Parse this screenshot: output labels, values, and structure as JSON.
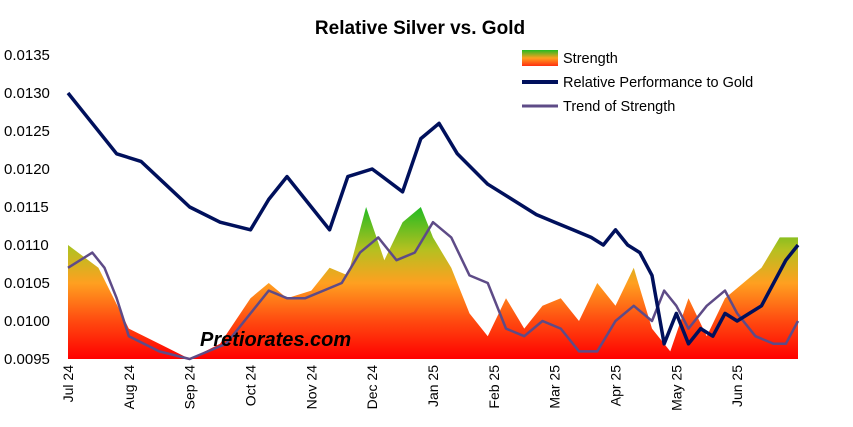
{
  "chart_data": {
    "type": "line",
    "title": "Relative Silver vs. Gold",
    "watermark": "Pretiorates.com",
    "ylim": [
      0.0095,
      0.0135
    ],
    "y_ticks": [
      "0.0135",
      "0.0130",
      "0.0125",
      "0.0120",
      "0.0115",
      "0.0110",
      "0.0105",
      "0.0100",
      "0.0095"
    ],
    "x_ticks": [
      "Jul 24",
      "Aug 24",
      "Sep 24",
      "Oct 24",
      "Nov 24",
      "Dec 24",
      "Jan 25",
      "Feb 25",
      "Mar 25",
      "Apr 25",
      "May 25",
      "Jun 25"
    ],
    "grid": false,
    "legend_position": "top-right",
    "legend": [
      {
        "label": "Strength",
        "kind": "gradient-area"
      },
      {
        "label": "Relative Performance to Gold",
        "kind": "line",
        "color": "#00105c"
      },
      {
        "label": "Trend of Strength",
        "kind": "line",
        "color": "#5e4b87"
      }
    ],
    "colors": {
      "performance": "#00105c",
      "trend": "#5e4b87",
      "strength_low": "#ff0000",
      "strength_mid": "#ffa020",
      "strength_high": "#22bb22"
    },
    "series": [
      {
        "name": "Relative Performance to Gold",
        "x": [
          0,
          0.3,
          0.8,
          1.2,
          1.6,
          2.0,
          2.5,
          3.0,
          3.3,
          3.6,
          4.1,
          4.3,
          4.6,
          5.0,
          5.5,
          5.8,
          6.1,
          6.4,
          6.9,
          7.3,
          7.7,
          8.0,
          8.3,
          8.6,
          8.8,
          9.0,
          9.2,
          9.4,
          9.6,
          9.8,
          10.0,
          10.2,
          10.4,
          10.6,
          10.8,
          11.0,
          11.2,
          11.4,
          11.6,
          11.8,
          12.0
        ],
        "y": [
          0.013,
          0.0127,
          0.0122,
          0.0121,
          0.0118,
          0.0115,
          0.0113,
          0.0112,
          0.0116,
          0.0119,
          0.0114,
          0.0112,
          0.0119,
          0.012,
          0.0117,
          0.0124,
          0.0126,
          0.0122,
          0.0118,
          0.0116,
          0.0114,
          0.0113,
          0.0112,
          0.0111,
          0.011,
          0.0112,
          0.011,
          0.0109,
          0.0106,
          0.0097,
          0.0101,
          0.0097,
          0.0099,
          0.0098,
          0.0101,
          0.01,
          0.0101,
          0.0102,
          0.0105,
          0.0108,
          0.011
        ]
      },
      {
        "name": "Trend of Strength",
        "x": [
          0,
          0.2,
          0.4,
          0.6,
          0.8,
          1.0,
          1.5,
          2.0,
          2.3,
          2.6,
          3.0,
          3.3,
          3.6,
          3.9,
          4.2,
          4.5,
          4.8,
          5.1,
          5.4,
          5.7,
          6.0,
          6.3,
          6.6,
          6.9,
          7.2,
          7.5,
          7.8,
          8.1,
          8.4,
          8.7,
          9.0,
          9.3,
          9.6,
          9.8,
          10.0,
          10.2,
          10.5,
          10.8,
          11.0,
          11.3,
          11.6,
          11.8,
          12.0
        ],
        "y": [
          0.0107,
          0.0108,
          0.0109,
          0.0107,
          0.0103,
          0.0098,
          0.0096,
          0.0095,
          0.0096,
          0.0097,
          0.0101,
          0.0104,
          0.0103,
          0.0103,
          0.0104,
          0.0105,
          0.0109,
          0.0111,
          0.0108,
          0.0109,
          0.0113,
          0.0111,
          0.0106,
          0.0105,
          0.0099,
          0.0098,
          0.01,
          0.0099,
          0.0096,
          0.0096,
          0.01,
          0.0102,
          0.01,
          0.0104,
          0.0102,
          0.0099,
          0.0102,
          0.0104,
          0.0101,
          0.0098,
          0.0097,
          0.0097,
          0.01
        ]
      },
      {
        "name": "Strength",
        "x": [
          0,
          0.5,
          1.0,
          1.5,
          2.0,
          2.5,
          3.0,
          3.3,
          3.6,
          4.0,
          4.3,
          4.6,
          4.9,
          5.2,
          5.5,
          5.8,
          6.0,
          6.3,
          6.6,
          6.9,
          7.2,
          7.5,
          7.8,
          8.1,
          8.4,
          8.7,
          9.0,
          9.3,
          9.6,
          9.9,
          10.2,
          10.5,
          10.8,
          11.1,
          11.4,
          11.7,
          12.0
        ],
        "y": [
          0.011,
          0.0107,
          0.0099,
          0.0097,
          0.0095,
          0.0097,
          0.0103,
          0.0105,
          0.0103,
          0.0104,
          0.0107,
          0.0106,
          0.0115,
          0.0108,
          0.0113,
          0.0115,
          0.0111,
          0.0107,
          0.0101,
          0.0098,
          0.0103,
          0.0099,
          0.0102,
          0.0103,
          0.01,
          0.0105,
          0.0102,
          0.0107,
          0.0099,
          0.0096,
          0.0103,
          0.0098,
          0.0103,
          0.0105,
          0.0107,
          0.0111,
          0.0111
        ]
      }
    ]
  }
}
